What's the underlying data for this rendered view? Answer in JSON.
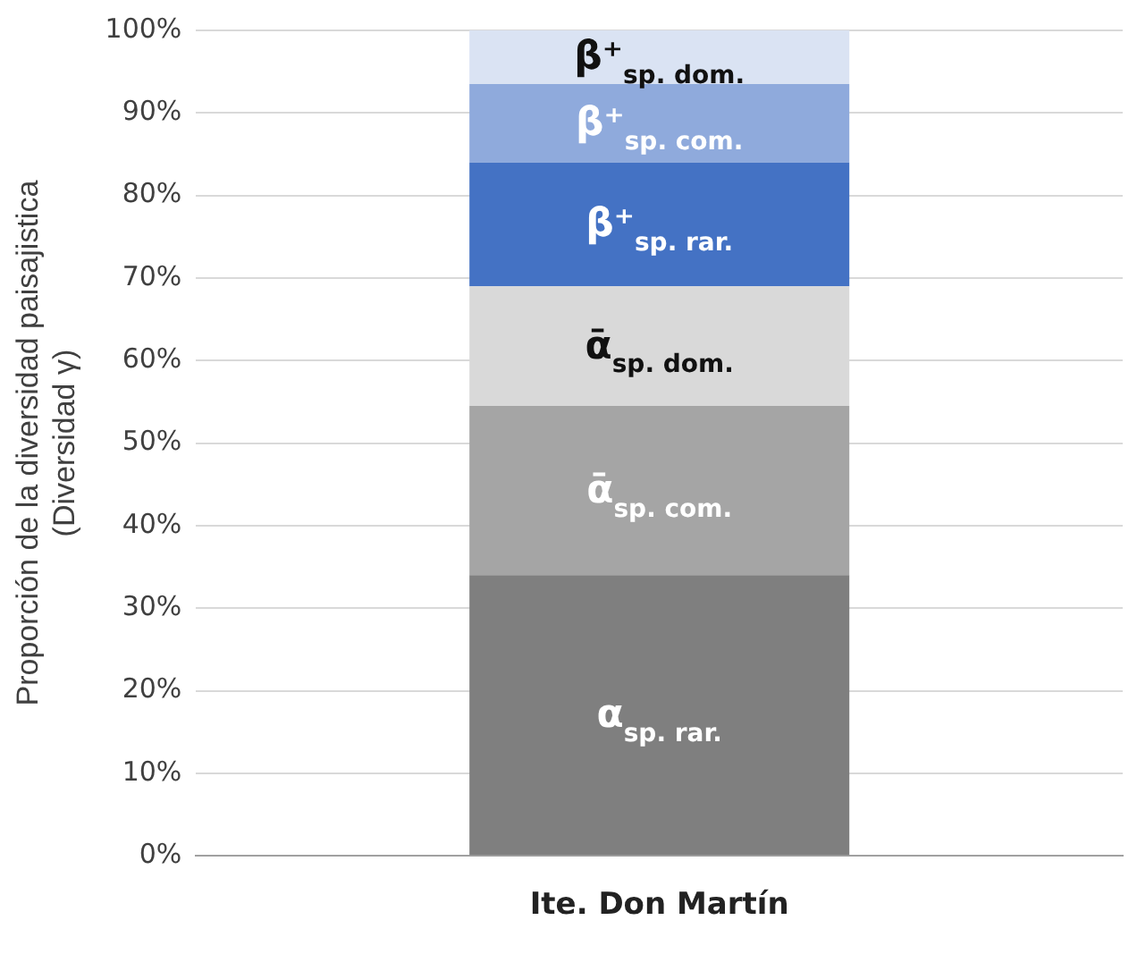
{
  "chart_data": {
    "type": "bar",
    "stacked": true,
    "ylabel": "Proporción de la diversidad paisajistica\n(Diversidad γ)",
    "categories": [
      "Ite. Don Martín"
    ],
    "series": [
      {
        "name": "α$_{sp. rar.}$",
        "color": "#7f7f7f",
        "values": [
          34
        ]
      },
      {
        "name": "ᾱ$_{sp. com.}$",
        "color": "#a5a5a5",
        "values": [
          20.5
        ]
      },
      {
        "name": "ᾱ$_{sp. dom.}$",
        "color": "#d9d9d9",
        "values": [
          14.5
        ]
      },
      {
        "name": "β⁺$_{sp. rar.}$",
        "color": "#4472c4",
        "values": [
          15
        ]
      },
      {
        "name": "β⁺$_{sp. com.}$",
        "color": "#8faadc",
        "values": [
          9.5
        ]
      },
      {
        "name": "β⁺$_{sp. dom.}$",
        "color": "#dae3f3",
        "values": [
          6.5
        ]
      }
    ],
    "ylim": [
      0,
      100
    ],
    "yticks": [
      {
        "value": 0,
        "label": "0%"
      },
      {
        "value": 10,
        "label": "10%"
      },
      {
        "value": 20,
        "label": "20%"
      },
      {
        "value": 30,
        "label": "30%"
      },
      {
        "value": 40,
        "label": "40%"
      },
      {
        "value": 50,
        "label": "50%"
      },
      {
        "value": 60,
        "label": "60%"
      },
      {
        "value": 70,
        "label": "70%"
      },
      {
        "value": 80,
        "label": "80%"
      },
      {
        "value": 90,
        "label": "90%"
      },
      {
        "value": 100,
        "label": "100%"
      }
    ],
    "grid": "y",
    "legend": false
  }
}
